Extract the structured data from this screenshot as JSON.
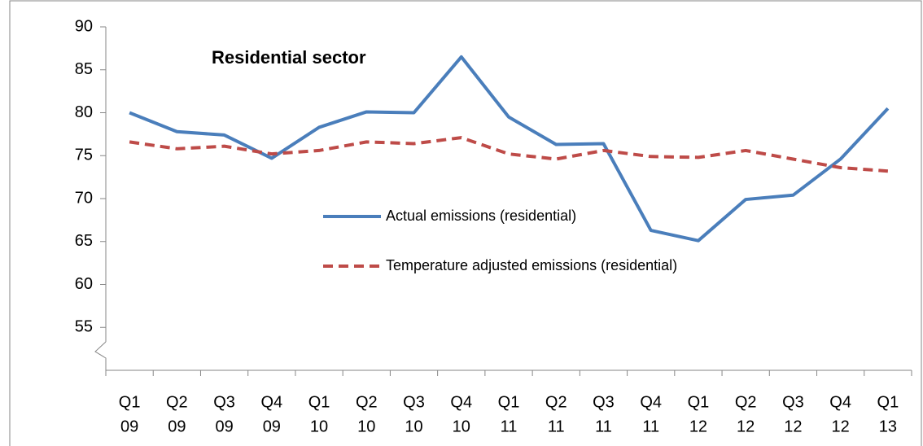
{
  "chart_data": {
    "type": "line",
    "title": "Residential sector",
    "categories": [
      [
        "Q1",
        "09"
      ],
      [
        "Q2",
        "09"
      ],
      [
        "Q3",
        "09"
      ],
      [
        "Q4",
        "09"
      ],
      [
        "Q1",
        "10"
      ],
      [
        "Q2",
        "10"
      ],
      [
        "Q3",
        "10"
      ],
      [
        "Q4",
        "10"
      ],
      [
        "Q1",
        "11"
      ],
      [
        "Q2",
        "11"
      ],
      [
        "Q3",
        "11"
      ],
      [
        "Q4",
        "11"
      ],
      [
        "Q1",
        "12"
      ],
      [
        "Q2",
        "12"
      ],
      [
        "Q3",
        "12"
      ],
      [
        "Q4",
        "12"
      ],
      [
        "Q1",
        "13"
      ]
    ],
    "series": [
      {
        "name": "Actual emissions (residential)",
        "color": "#4a7ebb",
        "style": "solid",
        "values": [
          80.0,
          77.8,
          77.4,
          74.7,
          78.3,
          80.1,
          80.0,
          86.5,
          79.5,
          76.3,
          76.4,
          66.3,
          65.1,
          69.9,
          70.4,
          74.6,
          80.5
        ]
      },
      {
        "name": "Temperature adjusted emissions (residential)",
        "color": "#be4b48",
        "style": "dashed",
        "values": [
          76.6,
          75.8,
          76.1,
          75.2,
          75.6,
          76.6,
          76.4,
          77.1,
          75.2,
          74.6,
          75.6,
          74.9,
          74.8,
          75.6,
          74.6,
          73.6,
          73.2
        ]
      }
    ],
    "ylim": [
      50,
      90
    ],
    "yticks": [
      55,
      60,
      65,
      70,
      75,
      80,
      85,
      90
    ]
  }
}
